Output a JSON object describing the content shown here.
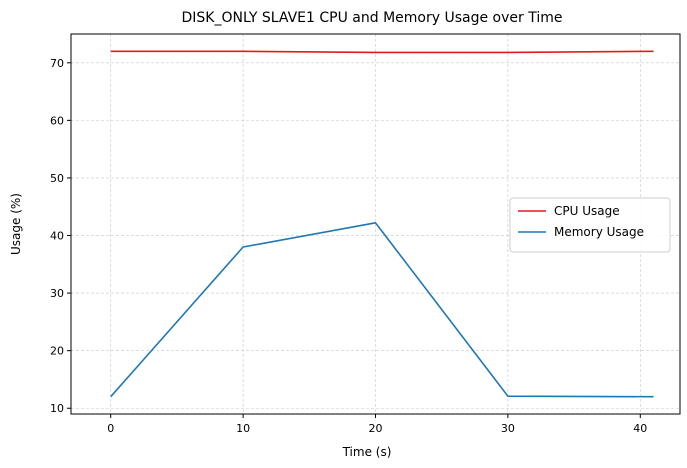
{
  "chart_data": {
    "type": "line",
    "title": "DISK_ONLY SLAVE1 CPU and Memory Usage over Time",
    "xlabel": "Time (s)",
    "ylabel": "Usage (%)",
    "xlim": [
      -3,
      43
    ],
    "ylim": [
      9,
      75
    ],
    "xticks": [
      0,
      10,
      20,
      30,
      40
    ],
    "yticks": [
      10,
      20,
      30,
      40,
      50,
      60,
      70
    ],
    "grid": true,
    "legend_position": "center-right",
    "series": [
      {
        "name": "CPU Usage",
        "color": "#e31a1c",
        "x": [
          0,
          10,
          20,
          30,
          41
        ],
        "y": [
          72.0,
          72.0,
          71.8,
          71.8,
          72.0
        ]
      },
      {
        "name": "Memory Usage",
        "color": "#1f77b4",
        "x": [
          0,
          10,
          20,
          30,
          41
        ],
        "y": [
          12.0,
          38.0,
          42.2,
          12.1,
          12.0
        ]
      }
    ]
  }
}
